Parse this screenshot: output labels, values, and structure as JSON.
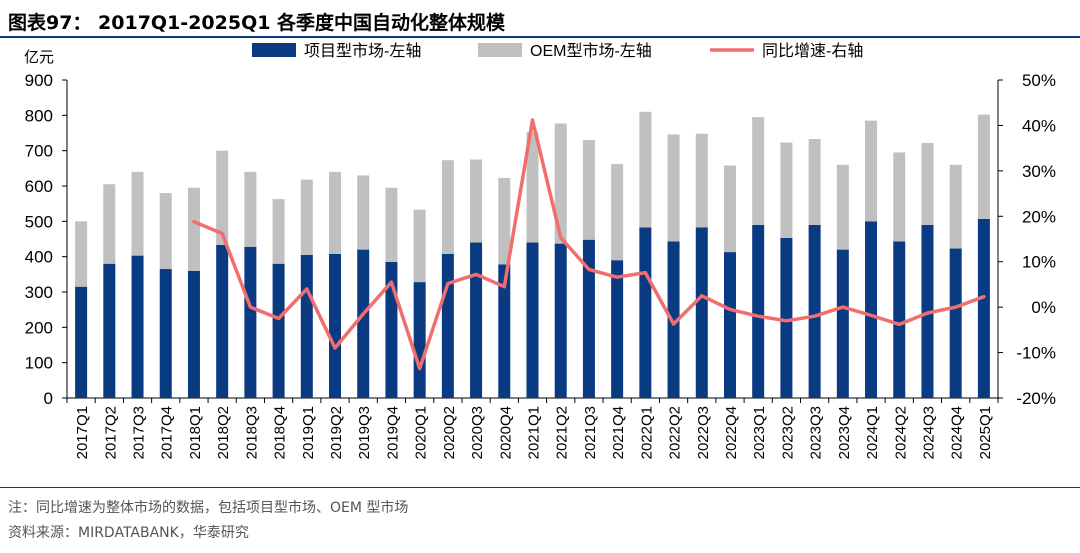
{
  "title": "图表97： 2017Q1-2025Q1 各季度中国自动化整体规模",
  "notes": {
    "note": "注：同比增速为整体市场的数据，包括项目型市场、OEM 型市场",
    "source": "资料来源：MIRDATABANK，华泰研究"
  },
  "colors": {
    "project": "#0a3a82",
    "oem": "#c0c0c0",
    "growth": "#f26d6d",
    "rule": "#0b3a86"
  },
  "chart_data": {
    "type": "bar",
    "stacked": true,
    "y_left_unit": "亿元",
    "ylim_left": [
      0,
      900
    ],
    "yticks_left": [
      0,
      100,
      200,
      300,
      400,
      500,
      600,
      700,
      800,
      900
    ],
    "ylim_right": [
      -20,
      50
    ],
    "yticks_right_labels": [
      "-20%",
      "-10%",
      "0%",
      "10%",
      "20%",
      "30%",
      "40%",
      "50%"
    ],
    "yticks_right": [
      -20,
      -10,
      0,
      10,
      20,
      30,
      40,
      50
    ],
    "legend_position": "top",
    "categories": [
      "2017Q1",
      "2017Q2",
      "2017Q3",
      "2017Q4",
      "2018Q1",
      "2018Q2",
      "2018Q3",
      "2018Q4",
      "2019Q1",
      "2019Q2",
      "2019Q3",
      "2019Q4",
      "2020Q1",
      "2020Q2",
      "2020Q3",
      "2020Q4",
      "2021Q1",
      "2021Q2",
      "2021Q3",
      "2021Q4",
      "2022Q1",
      "2022Q2",
      "2022Q3",
      "2022Q4",
      "2023Q1",
      "2023Q2",
      "2023Q3",
      "2023Q4",
      "2024Q1",
      "2024Q2",
      "2024Q3",
      "2024Q4",
      "2025Q1"
    ],
    "series": [
      {
        "name": "项目型市场-左轴",
        "type": "bar",
        "axis": "left",
        "values": [
          315,
          380,
          403,
          365,
          360,
          433,
          428,
          380,
          405,
          408,
          420,
          385,
          328,
          408,
          440,
          378,
          440,
          437,
          448,
          390,
          483,
          443,
          483,
          413,
          490,
          453,
          490,
          420,
          500,
          443,
          490,
          423,
          507
        ]
      },
      {
        "name": "OEM型市场-左轴",
        "type": "bar",
        "axis": "left",
        "values": [
          185,
          225,
          237,
          215,
          235,
          267,
          212,
          183,
          213,
          232,
          210,
          210,
          205,
          265,
          235,
          245,
          312,
          340,
          282,
          272,
          327,
          303,
          265,
          245,
          305,
          270,
          243,
          240,
          285,
          252,
          232,
          237,
          295
        ]
      },
      {
        "name": "同比增速-右轴",
        "type": "line",
        "axis": "right",
        "values": [
          null,
          null,
          null,
          null,
          18.8,
          16.2,
          0,
          -2.5,
          4,
          -9,
          -1.5,
          5.5,
          -13.5,
          5.2,
          7.2,
          4.5,
          41.2,
          15.3,
          8.3,
          6.6,
          7.6,
          -3.7,
          2.5,
          -0.5,
          -2,
          -3,
          -2,
          0,
          -1.8,
          -3.8,
          -1.3,
          0,
          2.3
        ]
      }
    ]
  }
}
